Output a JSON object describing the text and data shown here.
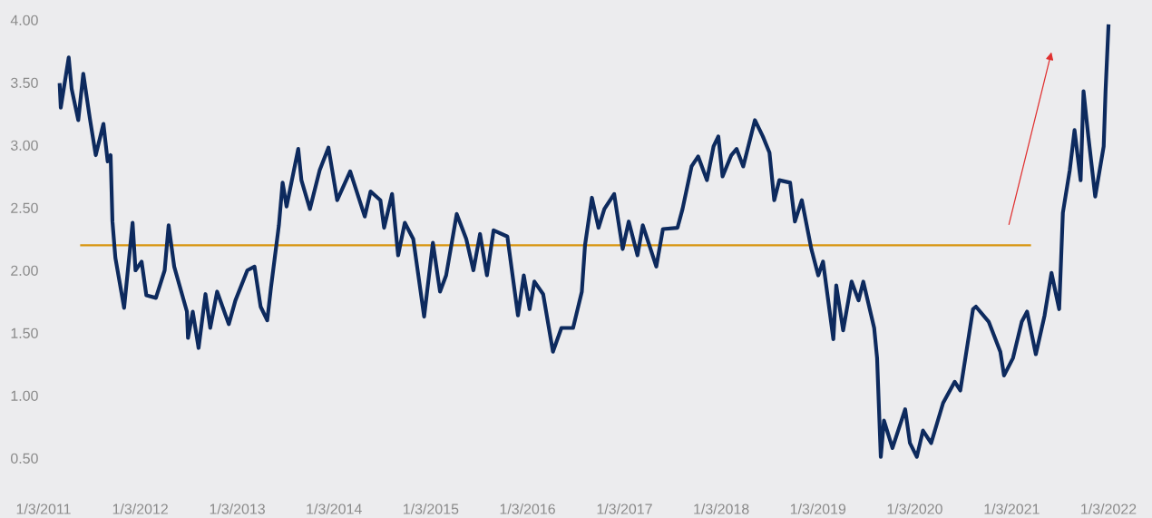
{
  "chart_data": {
    "type": "line",
    "xlim": [
      "2011-01-03",
      "2022-01-03"
    ],
    "ylim": [
      0.5,
      4.0
    ],
    "xticks": [
      {
        "value": "2011-01-03",
        "label": "1/3/2011"
      },
      {
        "value": "2012-01-03",
        "label": "1/3/2012"
      },
      {
        "value": "2013-01-03",
        "label": "1/3/2013"
      },
      {
        "value": "2014-01-03",
        "label": "1/3/2014"
      },
      {
        "value": "2015-01-03",
        "label": "1/3/2015"
      },
      {
        "value": "2016-01-03",
        "label": "1/3/2016"
      },
      {
        "value": "2017-01-03",
        "label": "1/3/2017"
      },
      {
        "value": "2018-01-03",
        "label": "1/3/2018"
      },
      {
        "value": "2019-01-03",
        "label": "1/3/2019"
      },
      {
        "value": "2020-01-03",
        "label": "1/3/2020"
      },
      {
        "value": "2021-01-03",
        "label": "1/3/2021"
      },
      {
        "value": "2022-01-03",
        "label": "1/3/2022"
      }
    ],
    "yticks": [
      {
        "value": 0.5,
        "label": "0.50"
      },
      {
        "value": 1.0,
        "label": "1.00"
      },
      {
        "value": 1.5,
        "label": "1.50"
      },
      {
        "value": 2.0,
        "label": "2.00"
      },
      {
        "value": 2.5,
        "label": "2.50"
      },
      {
        "value": 3.0,
        "label": "3.00"
      },
      {
        "value": 3.5,
        "label": "3.50"
      },
      {
        "value": 4.0,
        "label": "4.00"
      }
    ],
    "series": [
      {
        "color": "#0d2a5e",
        "x": [
          "2011-03-05",
          "2011-03-09",
          "2011-04-08",
          "2011-04-19",
          "2011-05-14",
          "2011-06-02",
          "2011-06-27",
          "2011-07-19",
          "2011-08-17",
          "2011-09-02",
          "2011-09-13",
          "2011-09-20",
          "2011-10-01",
          "2011-11-03",
          "2011-12-05",
          "2011-12-16",
          "2012-01-08",
          "2012-01-26",
          "2012-03-02",
          "2012-04-04",
          "2012-04-19",
          "2012-05-10",
          "2012-06-27",
          "2012-07-01",
          "2012-07-19",
          "2012-08-10",
          "2012-09-05",
          "2012-09-23",
          "2012-10-19",
          "2012-12-02",
          "2012-12-27",
          "2013-02-10",
          "2013-03-09",
          "2013-04-01",
          "2013-04-26",
          "2013-05-10",
          "2013-06-09",
          "2013-06-23",
          "2013-07-08",
          "2013-08-21",
          "2013-09-02",
          "2013-10-04",
          "2013-11-10",
          "2013-12-13",
          "2014-01-15",
          "2014-03-05",
          "2014-04-29",
          "2014-05-21",
          "2014-06-27",
          "2014-07-11",
          "2014-08-10",
          "2014-09-02",
          "2014-09-27",
          "2014-10-29",
          "2014-12-09",
          "2015-01-11",
          "2015-02-07",
          "2015-03-02",
          "2015-04-11",
          "2015-05-17",
          "2015-06-13",
          "2015-07-08",
          "2015-08-03",
          "2015-08-28",
          "2015-10-19",
          "2015-11-28",
          "2015-12-20",
          "2016-01-11",
          "2016-01-29",
          "2016-03-02",
          "2016-04-08",
          "2016-05-10",
          "2016-06-23",
          "2016-07-26",
          "2016-08-07",
          "2016-09-02",
          "2016-09-27",
          "2016-10-19",
          "2016-11-25",
          "2016-12-27",
          "2017-01-19",
          "2017-02-21",
          "2017-03-13",
          "2017-05-03",
          "2017-05-28",
          "2017-07-22",
          "2017-08-10",
          "2017-09-13",
          "2017-10-08",
          "2017-11-10",
          "2017-12-05",
          "2017-12-23",
          "2018-01-08",
          "2018-02-10",
          "2018-03-02",
          "2018-03-27",
          "2018-05-10",
          "2018-06-09",
          "2018-07-04",
          "2018-07-22",
          "2018-08-10",
          "2018-09-20",
          "2018-10-08",
          "2018-11-03",
          "2018-12-09",
          "2019-01-04",
          "2019-01-22",
          "2019-03-02",
          "2019-03-13",
          "2019-04-08",
          "2019-05-10",
          "2019-06-05",
          "2019-06-23",
          "2019-08-03",
          "2019-08-14",
          "2019-08-28",
          "2019-09-09",
          "2019-10-11",
          "2019-11-28",
          "2019-12-16",
          "2020-01-11",
          "2020-02-03",
          "2020-03-05",
          "2020-04-19",
          "2020-06-02",
          "2020-06-23",
          "2020-08-10",
          "2020-08-21",
          "2020-10-08",
          "2020-11-21",
          "2020-12-05",
          "2021-01-08",
          "2021-02-10",
          "2021-03-02",
          "2021-04-04",
          "2021-05-07",
          "2021-06-02",
          "2021-07-01",
          "2021-07-15",
          "2021-08-10",
          "2021-08-28",
          "2021-09-20",
          "2021-10-01",
          "2021-10-19",
          "2021-11-14",
          "2021-12-16",
          "2021-12-23",
          "2022-01-03"
        ],
        "values": [
          3.48,
          3.3,
          3.7,
          3.45,
          3.2,
          3.57,
          3.21,
          2.92,
          3.17,
          2.87,
          2.92,
          2.39,
          2.1,
          1.7,
          2.38,
          2.0,
          2.07,
          1.8,
          1.78,
          2.0,
          2.36,
          2.03,
          1.67,
          1.46,
          1.67,
          1.38,
          1.81,
          1.54,
          1.83,
          1.57,
          1.76,
          2.0,
          2.03,
          1.71,
          1.6,
          1.86,
          2.36,
          2.7,
          2.51,
          2.97,
          2.72,
          2.49,
          2.8,
          2.98,
          2.56,
          2.79,
          2.43,
          2.63,
          2.56,
          2.34,
          2.61,
          2.12,
          2.38,
          2.25,
          1.63,
          2.22,
          1.83,
          1.96,
          2.45,
          2.25,
          2.0,
          2.29,
          1.96,
          2.32,
          2.27,
          1.64,
          1.96,
          1.69,
          1.91,
          1.81,
          1.35,
          1.54,
          1.54,
          1.83,
          2.2,
          2.58,
          2.34,
          2.49,
          2.61,
          2.17,
          2.39,
          2.12,
          2.36,
          2.03,
          2.33,
          2.34,
          2.49,
          2.83,
          2.91,
          2.72,
          2.99,
          3.07,
          2.75,
          2.92,
          2.97,
          2.83,
          3.2,
          3.07,
          2.94,
          2.56,
          2.72,
          2.7,
          2.39,
          2.56,
          2.17,
          1.96,
          2.07,
          1.45,
          1.88,
          1.52,
          1.91,
          1.76,
          1.91,
          1.54,
          1.3,
          0.51,
          0.8,
          0.58,
          0.89,
          0.62,
          0.51,
          0.72,
          0.62,
          0.94,
          1.11,
          1.04,
          1.69,
          1.71,
          1.59,
          1.35,
          1.16,
          1.3,
          1.59,
          1.67,
          1.33,
          1.64,
          1.98,
          1.69,
          2.46,
          2.8,
          3.12,
          2.72,
          3.43,
          3.07,
          2.59,
          2.99,
          3.43,
          3.95
        ]
      },
      {
        "type": "line",
        "color": "#d8950f",
        "x": [
          "2011-05-25",
          "2021-03-13"
        ],
        "values": [
          2.2,
          2.2
        ]
      }
    ]
  }
}
